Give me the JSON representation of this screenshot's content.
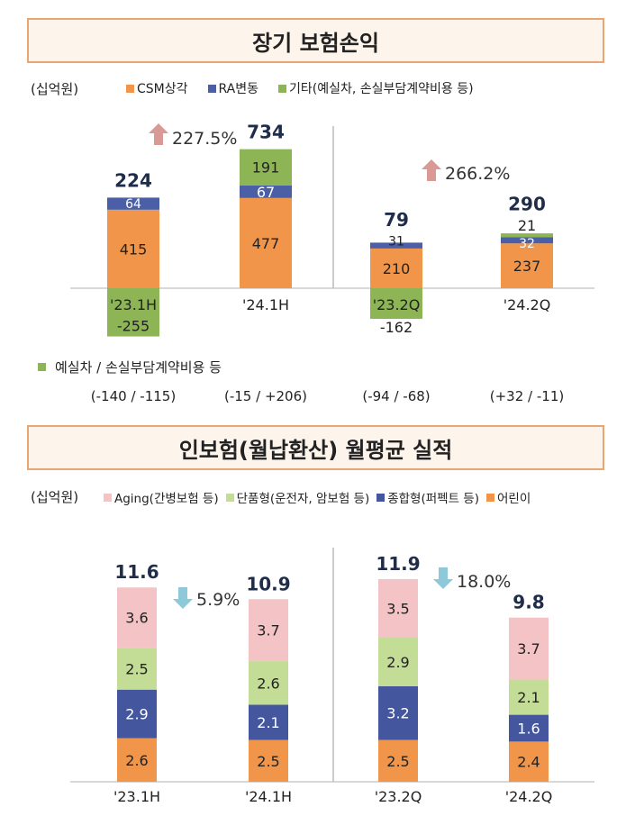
{
  "section1_title": "장기 보험손익",
  "section2_title": "인보험(월납환산) 월평균 실적",
  "colors": {
    "orange": "#f0954a",
    "blue": "#4a5fa5",
    "green": "#8db555",
    "pink": "#f4c3c6",
    "lightgreen": "#c3dc96",
    "navy": "#44569e",
    "arrow_up": "#d99a96",
    "arrow_down": "#8ec9da"
  },
  "chart_data": [
    {
      "type": "bar",
      "stacked": true,
      "unit_label": "(십억원)",
      "categories": [
        "'23.1H",
        "'24.1H",
        "'23.2Q",
        "'24.2Q"
      ],
      "series": [
        {
          "name": "CSM상각",
          "color": "#f0954a",
          "values": [
            415,
            477,
            210,
            237
          ]
        },
        {
          "name": "RA변동",
          "color": "#4a5fa5",
          "values": [
            64,
            67,
            31,
            32
          ]
        },
        {
          "name": "기타(예실차, 손실부담계약비용 등)",
          "color": "#8db555",
          "values": [
            -255,
            191,
            -162,
            21
          ]
        }
      ],
      "totals": [
        "224",
        "734",
        "79",
        "290"
      ],
      "changes": [
        {
          "label": "227.5%",
          "direction": "up"
        },
        {
          "label": "266.2%",
          "direction": "up"
        }
      ],
      "breakdown_label": "예실차 / 손실부담계약비용 등",
      "breakdown_values": [
        "(-140 / -115)",
        "(-15 / +206)",
        "(-94 / -68)",
        "(+32 / -11)"
      ]
    },
    {
      "type": "bar",
      "stacked": true,
      "unit_label": "(십억원)",
      "categories": [
        "'23.1H",
        "'24.1H",
        "'23.2Q",
        "'24.2Q"
      ],
      "series": [
        {
          "name": "어린이",
          "color": "#f0954a",
          "values": [
            2.6,
            2.5,
            2.5,
            2.4
          ]
        },
        {
          "name": "종합형(퍼펙트 등)",
          "color": "#44569e",
          "values": [
            2.9,
            2.1,
            3.2,
            1.6
          ]
        },
        {
          "name": "단품형(운전자, 암보험 등)",
          "color": "#c3dc96",
          "values": [
            2.5,
            2.6,
            2.9,
            2.1
          ]
        },
        {
          "name": "Aging(간병보험 등)",
          "color": "#f4c3c6",
          "values": [
            3.6,
            3.7,
            3.5,
            3.7
          ]
        }
      ],
      "legend_order": [
        "Aging(간병보험 등)",
        "단품형(운전자, 암보험 등)",
        "종합형(퍼펙트 등)",
        "어린이"
      ],
      "totals": [
        "11.6",
        "10.9",
        "11.9",
        "9.8"
      ],
      "changes": [
        {
          "label": "5.9%",
          "direction": "down"
        },
        {
          "label": "18.0%",
          "direction": "down"
        }
      ]
    }
  ]
}
